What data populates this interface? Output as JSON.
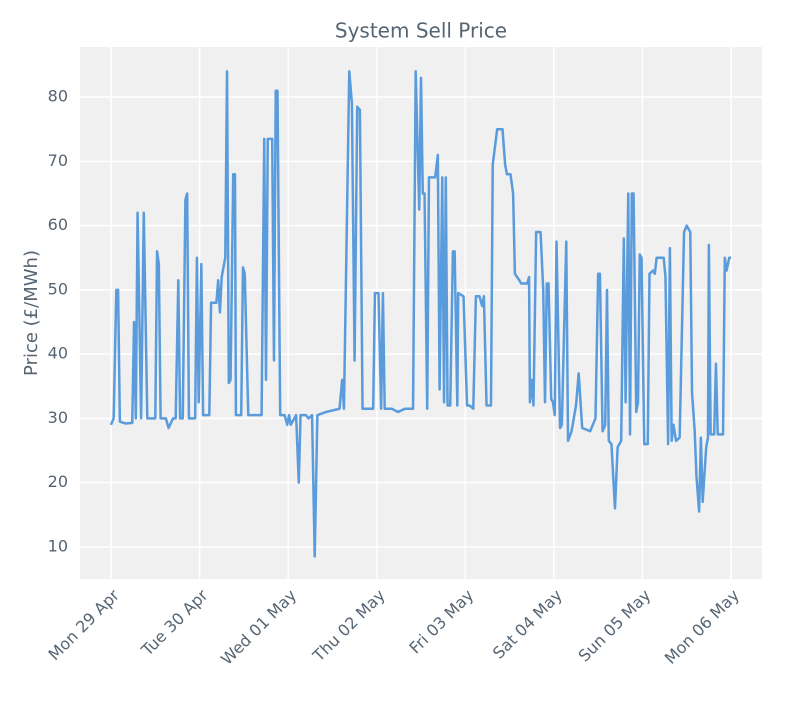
{
  "chart_data": {
    "type": "line",
    "title": "System Sell Price",
    "y_label": "Price (£/MWh)",
    "color": "#5a9bdc",
    "grid": true,
    "xlim": [
      -0.35,
      7.35
    ],
    "ylim": [
      5,
      87.8
    ],
    "xticks": [
      {
        "value": 0,
        "label": "Mon 29 Apr"
      },
      {
        "value": 1,
        "label": "Tue 30 Apr"
      },
      {
        "value": 2,
        "label": "Wed 01 May"
      },
      {
        "value": 3,
        "label": "Thu 02 May"
      },
      {
        "value": 4,
        "label": "Fri 03 May"
      },
      {
        "value": 5,
        "label": "Sat 04 May"
      },
      {
        "value": 6,
        "label": "Sun 05 May"
      },
      {
        "value": 7,
        "label": "Mon 06 May"
      }
    ],
    "yticks": [
      10,
      20,
      30,
      40,
      50,
      60,
      70,
      80
    ],
    "x": [
      0,
      0.03,
      0.06,
      0.08,
      0.1,
      0.16,
      0.24,
      0.26,
      0.28,
      0.3,
      0.34,
      0.37,
      0.41,
      0.5,
      0.52,
      0.54,
      0.56,
      0.62,
      0.65,
      0.7,
      0.73,
      0.76,
      0.78,
      0.81,
      0.84,
      0.86,
      0.88,
      0.95,
      0.97,
      0.99,
      1.02,
      1.04,
      1.11,
      1.13,
      1.19,
      1.21,
      1.23,
      1.25,
      1.29,
      1.31,
      1.33,
      1.35,
      1.38,
      1.4,
      1.41,
      1.47,
      1.49,
      1.51,
      1.55,
      1.7,
      1.73,
      1.75,
      1.77,
      1.82,
      1.84,
      1.86,
      1.88,
      1.91,
      1.96,
      1.99,
      2.01,
      2.03,
      2.09,
      2.12,
      2.14,
      2.2,
      2.23,
      2.27,
      2.3,
      2.33,
      2.43,
      2.58,
      2.61,
      2.63,
      2.69,
      2.72,
      2.75,
      2.78,
      2.81,
      2.84,
      2.96,
      2.98,
      3.02,
      3.05,
      3.07,
      3.09,
      3.17,
      3.24,
      3.32,
      3.37,
      3.41,
      3.44,
      3.48,
      3.5,
      3.52,
      3.54,
      3.57,
      3.59,
      3.66,
      3.69,
      3.71,
      3.74,
      3.76,
      3.78,
      3.8,
      3.83,
      3.86,
      3.88,
      3.91,
      3.92,
      3.98,
      4.02,
      4.05,
      4.09,
      4.12,
      4.16,
      4.19,
      4.21,
      4.24,
      4.29,
      4.31,
      4.36,
      4.42,
      4.45,
      4.47,
      4.51,
      4.54,
      4.56,
      4.61,
      4.63,
      4.7,
      4.72,
      4.73,
      4.75,
      4.77,
      4.8,
      4.85,
      4.88,
      4.9,
      4.92,
      4.94,
      4.97,
      4.99,
      5.01,
      5.03,
      5.07,
      5.09,
      5.14,
      5.16,
      5.2,
      5.25,
      5.28,
      5.32,
      5.41,
      5.44,
      5.47,
      5.5,
      5.52,
      5.55,
      5.58,
      5.6,
      5.62,
      5.65,
      5.69,
      5.72,
      5.76,
      5.79,
      5.81,
      5.84,
      5.86,
      5.88,
      5.9,
      5.93,
      5.95,
      5.97,
      5.99,
      6.02,
      6.06,
      6.08,
      6.12,
      6.14,
      6.16,
      6.24,
      6.26,
      6.29,
      6.31,
      6.33,
      6.35,
      6.38,
      6.42,
      6.47,
      6.5,
      6.54,
      6.56,
      6.59,
      6.61,
      6.64,
      6.66,
      6.68,
      6.72,
      6.74,
      6.75,
      6.77,
      6.81,
      6.83,
      6.85,
      6.87,
      6.91,
      6.93,
      6.95,
      6.98,
      7.0
    ],
    "values": [
      29,
      30,
      50,
      50,
      29.5,
      29.2,
      29.3,
      45,
      30,
      62,
      30,
      62,
      30,
      30,
      56,
      54,
      30,
      30,
      28.5,
      30,
      30,
      51.5,
      30,
      30,
      64,
      65,
      30,
      30,
      55,
      32.5,
      54,
      30.5,
      30.5,
      48,
      48,
      51.5,
      46.5,
      52,
      55,
      84,
      35.5,
      36,
      68,
      68,
      30.5,
      30.5,
      53.5,
      52.5,
      30.5,
      30.5,
      73.5,
      36,
      73.5,
      73.5,
      39,
      81,
      81,
      30.5,
      30.5,
      29,
      30.5,
      29,
      30.5,
      20,
      30.5,
      30.5,
      30,
      30.5,
      8.5,
      30.5,
      31,
      31.5,
      36,
      31.5,
      84,
      79,
      39,
      78.5,
      78,
      31.5,
      31.5,
      49.5,
      49.5,
      31.5,
      49.5,
      31.5,
      31.5,
      31,
      31.5,
      31.5,
      31.5,
      84,
      62.5,
      83,
      65,
      65,
      31.5,
      67.5,
      67.5,
      71,
      34.5,
      67.5,
      32.5,
      67.5,
      32,
      32,
      56,
      56,
      32,
      49.5,
      49,
      32,
      32,
      31.5,
      49,
      49,
      47.5,
      49,
      32,
      32,
      69.5,
      75,
      75,
      69.5,
      68,
      68,
      65,
      52.5,
      51.5,
      51,
      51,
      52,
      32.5,
      36,
      32,
      59,
      59,
      50,
      32.5,
      51,
      51,
      33,
      32.5,
      30.5,
      57.5,
      28.5,
      29,
      57.5,
      26.5,
      28,
      32,
      37,
      28.5,
      28,
      29,
      30,
      52.5,
      52.5,
      28,
      29,
      50,
      26.5,
      26,
      16,
      25.5,
      26.5,
      58,
      32.5,
      65,
      27.5,
      65,
      65,
      31,
      32.5,
      55.5,
      55,
      26,
      26,
      52.5,
      53,
      52.5,
      55,
      55,
      52,
      26,
      56.5,
      26.5,
      29,
      26.5,
      27,
      59,
      60,
      59,
      34,
      28,
      21,
      15.5,
      27,
      17,
      25.5,
      27,
      57,
      27.5,
      27.5,
      38.5,
      27.5,
      27.5,
      27.5,
      55,
      53,
      55,
      55
    ]
  }
}
